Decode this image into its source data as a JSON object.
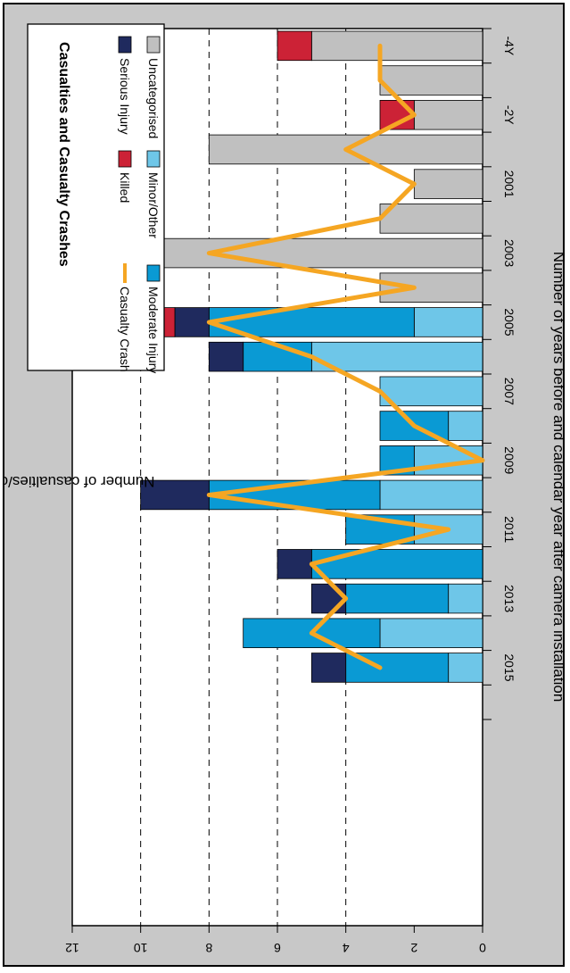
{
  "chart_data": {
    "type": "bar",
    "orientation": "rotated-90-clockwise",
    "title": "Casualties and Casualty Crashes",
    "xlabel": "Number of years before and calendar year after camera installation",
    "ylabel": "Number of casualties/casualty crashes",
    "ylim": [
      0,
      12
    ],
    "yticks": [
      "0",
      "2",
      "4",
      "6",
      "8",
      "10",
      "12"
    ],
    "grid": "dashed at 4, 6, 8, 10",
    "legend_position": "top-right",
    "x_tick_labels": [
      {
        "index": 0,
        "label": "-4Y"
      },
      {
        "index": 2,
        "label": "-2Y"
      },
      {
        "index": 4,
        "label": "2001"
      },
      {
        "index": 6,
        "label": "2003"
      },
      {
        "index": 8,
        "label": "2005"
      },
      {
        "index": 10,
        "label": "2007"
      },
      {
        "index": 12,
        "label": "2009"
      },
      {
        "index": 14,
        "label": "2011"
      },
      {
        "index": 16,
        "label": "2013"
      },
      {
        "index": 18,
        "label": "2015"
      }
    ],
    "stack_series": [
      {
        "name": "Uncategorised",
        "color": "#c0c0c0",
        "values": [
          5,
          3,
          2,
          8,
          2,
          3,
          11,
          3,
          0,
          0,
          0,
          0,
          0,
          0,
          0,
          0,
          0,
          0,
          0,
          0
        ]
      },
      {
        "name": "Minor/Other",
        "color": "#6ec6e8",
        "values": [
          0,
          0,
          0,
          0,
          0,
          0,
          0,
          0,
          2,
          5,
          3,
          1,
          2,
          3,
          2,
          0,
          1,
          3,
          1,
          0
        ]
      },
      {
        "name": "Moderate Injury",
        "color": "#0a9ad4",
        "values": [
          0,
          0,
          0,
          0,
          0,
          0,
          0,
          0,
          6,
          2,
          0,
          2,
          1,
          5,
          2,
          5,
          3,
          4,
          3,
          0
        ]
      },
      {
        "name": "Serious Injury",
        "color": "#1f2a5e",
        "values": [
          0,
          0,
          0,
          0,
          0,
          0,
          0,
          0,
          1,
          1,
          0,
          0,
          0,
          2,
          0,
          1,
          1,
          0,
          1,
          0
        ]
      },
      {
        "name": "Killed",
        "color": "#cc2236",
        "values": [
          1,
          0,
          1,
          0,
          0,
          0,
          0,
          0,
          1,
          0,
          0,
          0,
          0,
          0,
          0,
          0,
          0,
          0,
          0,
          0
        ]
      }
    ],
    "line_series": {
      "name": "Casualty Crash",
      "color": "#f5a623",
      "values": [
        3,
        3,
        2,
        4,
        2,
        3,
        8,
        2,
        8,
        5,
        3,
        2,
        0,
        8,
        1,
        5,
        4,
        5,
        3
      ]
    }
  }
}
